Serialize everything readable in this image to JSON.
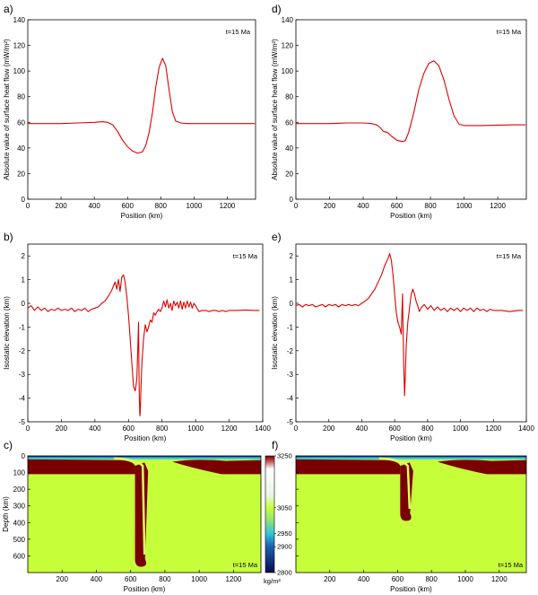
{
  "chart_data": [
    {
      "id": "a",
      "type": "line",
      "panel_label": "a)",
      "annotation": "t=15 Ma",
      "xlabel": "Position (km)",
      "ylabel": "Absolute value of surface heat flow (mW/m²)",
      "xlim": [
        0,
        1370
      ],
      "ylim": [
        0,
        140
      ],
      "xticks": [
        0,
        200,
        400,
        600,
        800,
        1000,
        1200
      ],
      "yticks": [
        0,
        20,
        40,
        60,
        80,
        100,
        120,
        140
      ],
      "color": "#e00000",
      "series": [
        {
          "x": [
            0,
            100,
            200,
            300,
            400,
            450,
            480,
            510,
            540,
            570,
            600,
            630,
            660,
            690,
            710,
            730,
            750,
            770,
            790,
            810,
            830,
            850,
            870,
            890,
            920,
            960,
            1000,
            1100,
            1200,
            1300,
            1365
          ],
          "y": [
            59,
            59,
            59,
            59.5,
            60,
            60.5,
            60,
            58,
            53,
            46,
            41,
            37.5,
            36,
            37,
            42,
            52,
            68,
            88,
            103,
            110,
            104,
            85,
            68,
            61,
            59.5,
            59,
            59,
            59,
            59,
            59,
            59
          ]
        }
      ]
    },
    {
      "id": "d",
      "type": "line",
      "panel_label": "d)",
      "annotation": "t=15 Ma",
      "xlabel": "Position (km)",
      "ylabel": "Absolute value of surface heat flow (mW/m²)",
      "xlim": [
        0,
        1370
      ],
      "ylim": [
        0,
        140
      ],
      "xticks": [
        0,
        200,
        400,
        600,
        800,
        1000,
        1200
      ],
      "yticks": [
        0,
        20,
        40,
        60,
        80,
        100,
        120,
        140
      ],
      "color": "#e00000",
      "series": [
        {
          "x": [
            0,
            100,
            200,
            300,
            400,
            450,
            480,
            500,
            520,
            545,
            570,
            600,
            630,
            650,
            670,
            700,
            730,
            760,
            790,
            820,
            850,
            880,
            910,
            940,
            970,
            1000,
            1100,
            1200,
            1300,
            1365
          ],
          "y": [
            59,
            59,
            59,
            59.5,
            59.5,
            59,
            58,
            56,
            53,
            52,
            49,
            46,
            45,
            45.5,
            52,
            67,
            85,
            98,
            106,
            108,
            104,
            93,
            78,
            65,
            58.5,
            57.5,
            57.5,
            57.8,
            58,
            58
          ]
        }
      ]
    },
    {
      "id": "b",
      "type": "line",
      "panel_label": "b)",
      "annotation": "t=15 Ma",
      "xlabel": "Position (km)",
      "ylabel": "Isostatic elevation (km)",
      "xlim": [
        0,
        1400
      ],
      "ylim": [
        -5,
        2.5
      ],
      "xticks": [
        0,
        200,
        400,
        600,
        800,
        1000,
        1200,
        1400
      ],
      "yticks": [
        -5,
        -4,
        -3,
        -2,
        -1,
        0,
        1,
        2
      ],
      "color": "#e00000",
      "series": [
        {
          "x": [
            0,
            20,
            40,
            60,
            80,
            100,
            120,
            140,
            160,
            180,
            200,
            220,
            240,
            260,
            280,
            300,
            320,
            340,
            360,
            380,
            400,
            420,
            440,
            460,
            480,
            500,
            520,
            530,
            540,
            550,
            560,
            570,
            580,
            590,
            600,
            610,
            620,
            630,
            640,
            650,
            655,
            660,
            662,
            665,
            668,
            670,
            675,
            680,
            690,
            700,
            710,
            720,
            730,
            740,
            750,
            760,
            770,
            780,
            790,
            800,
            810,
            820,
            830,
            840,
            850,
            860,
            870,
            880,
            890,
            900,
            910,
            920,
            930,
            940,
            950,
            960,
            970,
            980,
            990,
            1000,
            1020,
            1040,
            1060,
            1080,
            1100,
            1120,
            1140,
            1160,
            1180,
            1200,
            1250,
            1300,
            1350,
            1380
          ],
          "y": [
            -0.2,
            -0.1,
            -0.3,
            -0.15,
            -0.3,
            -0.2,
            -0.35,
            -0.25,
            -0.3,
            -0.2,
            -0.3,
            -0.25,
            -0.3,
            -0.2,
            -0.35,
            -0.25,
            -0.3,
            -0.2,
            -0.35,
            -0.25,
            -0.2,
            -0.15,
            0.0,
            0.1,
            0.3,
            0.55,
            0.9,
            0.6,
            1.0,
            0.5,
            1.1,
            1.2,
            0.9,
            0.3,
            -0.5,
            -1.5,
            -2.5,
            -3.5,
            -3.7,
            -3.2,
            -2.0,
            -0.8,
            -2.5,
            -4.0,
            -4.75,
            -4.6,
            -3.5,
            -2.5,
            -1.5,
            -0.9,
            -1.2,
            -1.0,
            -0.7,
            -0.8,
            -0.4,
            -0.5,
            -0.35,
            -0.25,
            -0.35,
            -0.2,
            0.1,
            -0.15,
            0.15,
            -0.2,
            0.0,
            -0.3,
            0.1,
            -0.1,
            0.05,
            -0.2,
            0.1,
            -0.25,
            0.05,
            -0.2,
            0.1,
            -0.15,
            0.05,
            -0.2,
            0.0,
            -0.1,
            -0.35,
            -0.3,
            -0.3,
            -0.35,
            -0.3,
            -0.3,
            -0.35,
            -0.3,
            -0.35,
            -0.3,
            -0.3,
            -0.28,
            -0.3,
            -0.3
          ]
        }
      ]
    },
    {
      "id": "e",
      "type": "line",
      "panel_label": "e)",
      "annotation": "t=15 Ma",
      "xlabel": "Position (km)",
      "ylabel": "Isostatic elevation (km)",
      "xlim": [
        0,
        1400
      ],
      "ylim": [
        -5,
        2.5
      ],
      "xticks": [
        0,
        200,
        400,
        600,
        800,
        1000,
        1200,
        1400
      ],
      "yticks": [
        -5,
        -4,
        -3,
        -2,
        -1,
        0,
        1,
        2
      ],
      "color": "#e00000",
      "series": [
        {
          "x": [
            0,
            20,
            40,
            60,
            80,
            100,
            120,
            140,
            160,
            180,
            200,
            220,
            240,
            260,
            280,
            300,
            320,
            340,
            360,
            380,
            400,
            420,
            440,
            460,
            480,
            500,
            520,
            540,
            560,
            570,
            580,
            590,
            600,
            610,
            620,
            630,
            640,
            645,
            648,
            650,
            655,
            660,
            665,
            670,
            680,
            690,
            700,
            710,
            720,
            730,
            740,
            750,
            760,
            780,
            800,
            820,
            840,
            860,
            880,
            900,
            920,
            940,
            960,
            980,
            1000,
            1020,
            1040,
            1060,
            1080,
            1100,
            1120,
            1140,
            1160,
            1180,
            1200,
            1250,
            1300,
            1350,
            1380
          ],
          "y": [
            -0.1,
            -0.05,
            -0.15,
            -0.05,
            -0.1,
            -0.05,
            -0.15,
            -0.1,
            -0.05,
            -0.15,
            -0.05,
            -0.1,
            -0.05,
            -0.15,
            -0.05,
            -0.1,
            -0.05,
            -0.1,
            -0.05,
            -0.1,
            0.0,
            0.1,
            0.2,
            0.4,
            0.6,
            0.9,
            1.2,
            1.6,
            1.9,
            2.1,
            1.8,
            1.2,
            0.4,
            -0.4,
            -0.8,
            -1.0,
            -1.3,
            -0.2,
            0.4,
            -0.6,
            -2.5,
            -3.9,
            -3.0,
            -1.8,
            -0.8,
            -0.2,
            0.35,
            0.6,
            0.4,
            0.1,
            -0.1,
            -0.35,
            -0.2,
            -0.05,
            -0.25,
            -0.1,
            -0.3,
            -0.15,
            -0.3,
            -0.2,
            -0.35,
            -0.2,
            -0.3,
            -0.2,
            -0.35,
            -0.2,
            -0.3,
            -0.2,
            -0.35,
            -0.2,
            -0.3,
            -0.25,
            -0.35,
            -0.25,
            -0.3,
            -0.3,
            -0.35,
            -0.3,
            -0.3
          ]
        }
      ]
    },
    {
      "id": "c",
      "type": "heatmap",
      "panel_label": "c)",
      "annotation": "t=15 Ma",
      "xlabel": "Position (km)",
      "ylabel": "Depth (km)",
      "xlim": [
        0,
        1360
      ],
      "ylim": [
        0,
        700
      ],
      "xticks": [
        200,
        400,
        600,
        800,
        1000,
        1200
      ],
      "yticks": [
        0,
        100,
        200,
        300,
        400,
        500,
        600
      ],
      "field": {
        "background_density": 3050,
        "slab_density": 3250,
        "slab_tip_depth": 665,
        "slab_top_center_x": 660,
        "slab_width": 90,
        "lithosphere_base_depth": 110
      }
    },
    {
      "id": "f",
      "type": "heatmap",
      "panel_label": "f)",
      "annotation": "t=15 Ma",
      "xlabel": "Position (km)",
      "ylabel": "",
      "xlim": [
        0,
        1360
      ],
      "ylim": [
        0,
        700
      ],
      "xticks": [
        200,
        400,
        600,
        800,
        1000,
        1200
      ],
      "yticks": [
        0,
        100,
        200,
        300,
        400,
        500,
        600
      ],
      "field": {
        "background_density": 3050,
        "slab_density": 3250,
        "slab_tip_depth": 390,
        "slab_top_center_x": 650,
        "slab_width": 90,
        "lithosphere_base_depth": 110
      }
    }
  ],
  "colorbar": {
    "unit": "kg/m³",
    "ticks": [
      3250,
      3050,
      2950,
      2900,
      2800
    ],
    "stops": [
      {
        "value": 2800,
        "color": "#0b0b4a"
      },
      {
        "value": 2900,
        "color": "#1e5fb0"
      },
      {
        "value": 2950,
        "color": "#2fc8d8"
      },
      {
        "value": 3000,
        "color": "#8fe07a"
      },
      {
        "value": 3050,
        "color": "#c6ff3a"
      },
      {
        "value": 3100,
        "color": "#e9f6e8"
      },
      {
        "value": 3200,
        "color": "#ffffff"
      },
      {
        "value": 3230,
        "color": "#c05050"
      },
      {
        "value": 3250,
        "color": "#7a0000"
      }
    ]
  },
  "colors": {
    "line": "#e00000",
    "mantle": "#c6ff3a",
    "slab": "#7a0000",
    "crust_blue": "#1440a0",
    "crust_cyan": "#2fc8d8",
    "crust_dark": "#0b0b4a"
  }
}
